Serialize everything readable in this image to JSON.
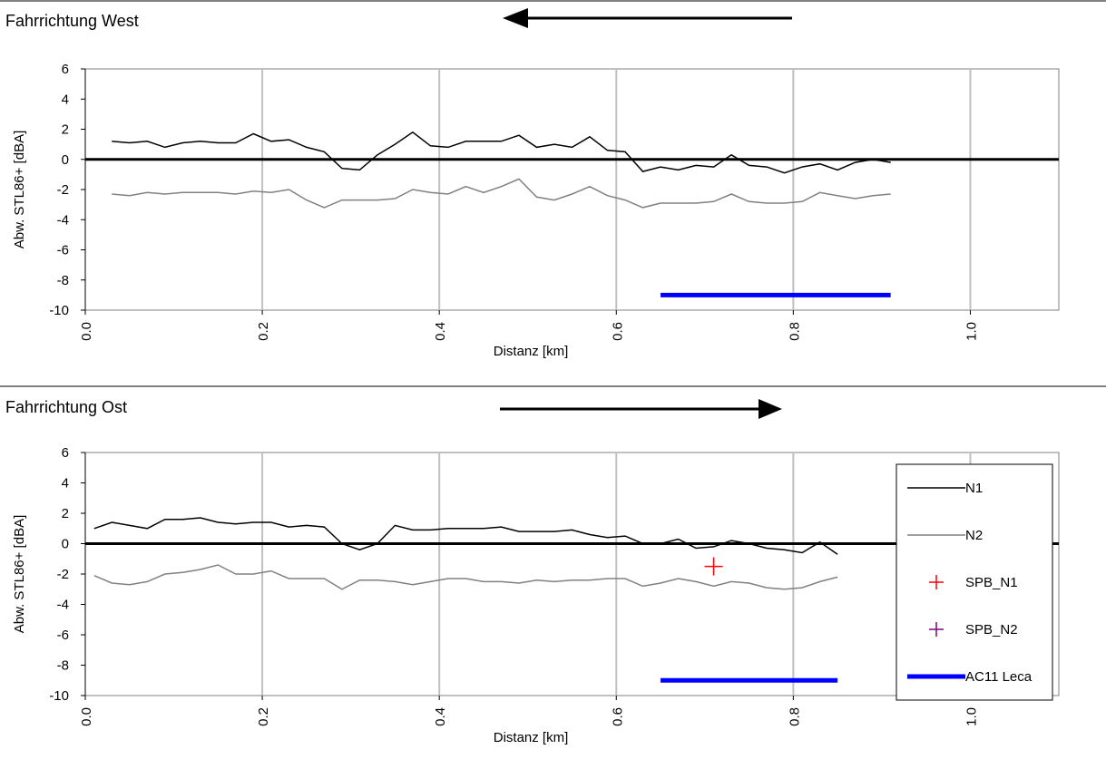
{
  "charts": [
    {
      "heading": "Fahrrichtung West",
      "direction": "left"
    },
    {
      "heading": "Fahrrichtung Ost",
      "direction": "right"
    }
  ],
  "chart_data": [
    {
      "type": "line",
      "title": "Fahrrichtung West",
      "xlabel": "Distanz [km]",
      "ylabel": "Abw. STL86+ [dBA]",
      "xlim": [
        0,
        1.1
      ],
      "ylim": [
        -10,
        6
      ],
      "xticks": [
        "0.0",
        "0.2",
        "0.4",
        "0.6",
        "0.8",
        "1.0"
      ],
      "xtick_values": [
        0,
        0.2,
        0.4,
        0.6,
        0.8,
        1.0
      ],
      "yticks": [
        "6",
        "4",
        "2",
        "0",
        "-2",
        "-4",
        "-6",
        "-8",
        "-10"
      ],
      "ytick_values": [
        6,
        4,
        2,
        0,
        -2,
        -4,
        -6,
        -8,
        -10
      ],
      "grid": "vertical",
      "zero_line": 0,
      "x": [
        0.03,
        0.05,
        0.07,
        0.09,
        0.11,
        0.13,
        0.15,
        0.17,
        0.19,
        0.21,
        0.23,
        0.25,
        0.27,
        0.29,
        0.31,
        0.33,
        0.35,
        0.37,
        0.39,
        0.41,
        0.43,
        0.45,
        0.47,
        0.49,
        0.51,
        0.53,
        0.55,
        0.57,
        0.59,
        0.61,
        0.63,
        0.65,
        0.67,
        0.69,
        0.71,
        0.73,
        0.75,
        0.77,
        0.79,
        0.81,
        0.83,
        0.85,
        0.87,
        0.89,
        0.91
      ],
      "series": [
        {
          "name": "N1",
          "color": "#000000",
          "values": [
            1.2,
            1.1,
            1.2,
            0.8,
            1.1,
            1.2,
            1.1,
            1.1,
            1.7,
            1.2,
            1.3,
            0.8,
            0.5,
            -0.6,
            -0.7,
            0.3,
            1.0,
            1.8,
            0.9,
            0.8,
            1.2,
            1.2,
            1.2,
            1.6,
            0.8,
            1.0,
            0.8,
            1.5,
            0.6,
            0.5,
            -0.8,
            -0.5,
            -0.7,
            -0.4,
            -0.5,
            0.3,
            -0.4,
            -0.5,
            -0.9,
            -0.5,
            -0.3,
            -0.7,
            -0.2,
            0.0,
            -0.2
          ]
        },
        {
          "name": "N2",
          "color": "#808080",
          "values": [
            -2.3,
            -2.4,
            -2.2,
            -2.3,
            -2.2,
            -2.2,
            -2.2,
            -2.3,
            -2.1,
            -2.2,
            -2.0,
            -2.7,
            -3.2,
            -2.7,
            -2.7,
            -2.7,
            -2.6,
            -2.0,
            -2.2,
            -2.3,
            -1.8,
            -2.2,
            -1.8,
            -1.3,
            -2.5,
            -2.7,
            -2.3,
            -1.8,
            -2.4,
            -2.7,
            -3.2,
            -2.9,
            -2.9,
            -2.9,
            -2.8,
            -2.3,
            -2.8,
            -2.9,
            -2.9,
            -2.8,
            -2.2,
            -2.4,
            -2.6,
            -2.4,
            -2.3
          ]
        }
      ],
      "bar_segment": {
        "name": "AC11 Leca",
        "color": "#0000ff",
        "x_start": 0.65,
        "x_end": 0.91,
        "y": -9
      }
    },
    {
      "type": "line",
      "title": "Fahrrichtung Ost",
      "xlabel": "Distanz [km]",
      "ylabel": "Abw. STL86+ [dBA]",
      "xlim": [
        0,
        1.1
      ],
      "ylim": [
        -10,
        6
      ],
      "xticks": [
        "0.0",
        "0.2",
        "0.4",
        "0.6",
        "0.8",
        "1.0"
      ],
      "xtick_values": [
        0,
        0.2,
        0.4,
        0.6,
        0.8,
        1.0
      ],
      "yticks": [
        "6",
        "4",
        "2",
        "0",
        "-2",
        "-4",
        "-6",
        "-8",
        "-10"
      ],
      "ytick_values": [
        6,
        4,
        2,
        0,
        -2,
        -4,
        -6,
        -8,
        -10
      ],
      "grid": "vertical",
      "zero_line": 0,
      "legend_position": "right",
      "x": [
        0.01,
        0.03,
        0.05,
        0.07,
        0.09,
        0.11,
        0.13,
        0.15,
        0.17,
        0.19,
        0.21,
        0.23,
        0.25,
        0.27,
        0.29,
        0.31,
        0.33,
        0.35,
        0.37,
        0.39,
        0.41,
        0.43,
        0.45,
        0.47,
        0.49,
        0.51,
        0.53,
        0.55,
        0.57,
        0.59,
        0.61,
        0.63,
        0.65,
        0.67,
        0.69,
        0.71,
        0.73,
        0.75,
        0.77,
        0.79,
        0.81,
        0.83,
        0.85
      ],
      "series": [
        {
          "name": "N1",
          "color": "#000000",
          "values": [
            1.0,
            1.4,
            1.2,
            1.0,
            1.6,
            1.6,
            1.7,
            1.4,
            1.3,
            1.4,
            1.4,
            1.1,
            1.2,
            1.1,
            0.0,
            -0.4,
            0.0,
            1.2,
            0.9,
            0.9,
            1.0,
            1.0,
            1.0,
            1.1,
            0.8,
            0.8,
            0.8,
            0.9,
            0.6,
            0.4,
            0.5,
            0.0,
            0.0,
            0.3,
            -0.3,
            -0.2,
            0.2,
            0.0,
            -0.3,
            -0.4,
            -0.6,
            0.1,
            -0.7
          ]
        },
        {
          "name": "N2",
          "color": "#808080",
          "values": [
            -2.1,
            -2.6,
            -2.7,
            -2.5,
            -2.0,
            -1.9,
            -1.7,
            -1.4,
            -2.0,
            -2.0,
            -1.8,
            -2.3,
            -2.3,
            -2.3,
            -3.0,
            -2.4,
            -2.4,
            -2.5,
            -2.7,
            -2.5,
            -2.3,
            -2.3,
            -2.5,
            -2.5,
            -2.6,
            -2.4,
            -2.5,
            -2.4,
            -2.4,
            -2.3,
            -2.3,
            -2.8,
            -2.6,
            -2.3,
            -2.5,
            -2.8,
            -2.5,
            -2.6,
            -2.9,
            -3.0,
            -2.9,
            -2.5,
            -2.2
          ]
        }
      ],
      "markers": [
        {
          "name": "SPB_N1",
          "color": "#ff0000",
          "x": 0.71,
          "y": -1.5
        }
      ],
      "bar_segment": {
        "name": "AC11 Leca",
        "color": "#0000ff",
        "x_start": 0.65,
        "x_end": 0.85,
        "y": -9
      },
      "legend": [
        {
          "label": "N1",
          "type": "line",
          "color": "#000000"
        },
        {
          "label": "N2",
          "type": "line",
          "color": "#808080"
        },
        {
          "label": "SPB_N1",
          "type": "plus",
          "color": "#ff0000"
        },
        {
          "label": "SPB_N2",
          "type": "plus",
          "color": "#800080"
        },
        {
          "label": "AC11 Leca",
          "type": "thickline",
          "color": "#0000ff"
        }
      ]
    }
  ]
}
